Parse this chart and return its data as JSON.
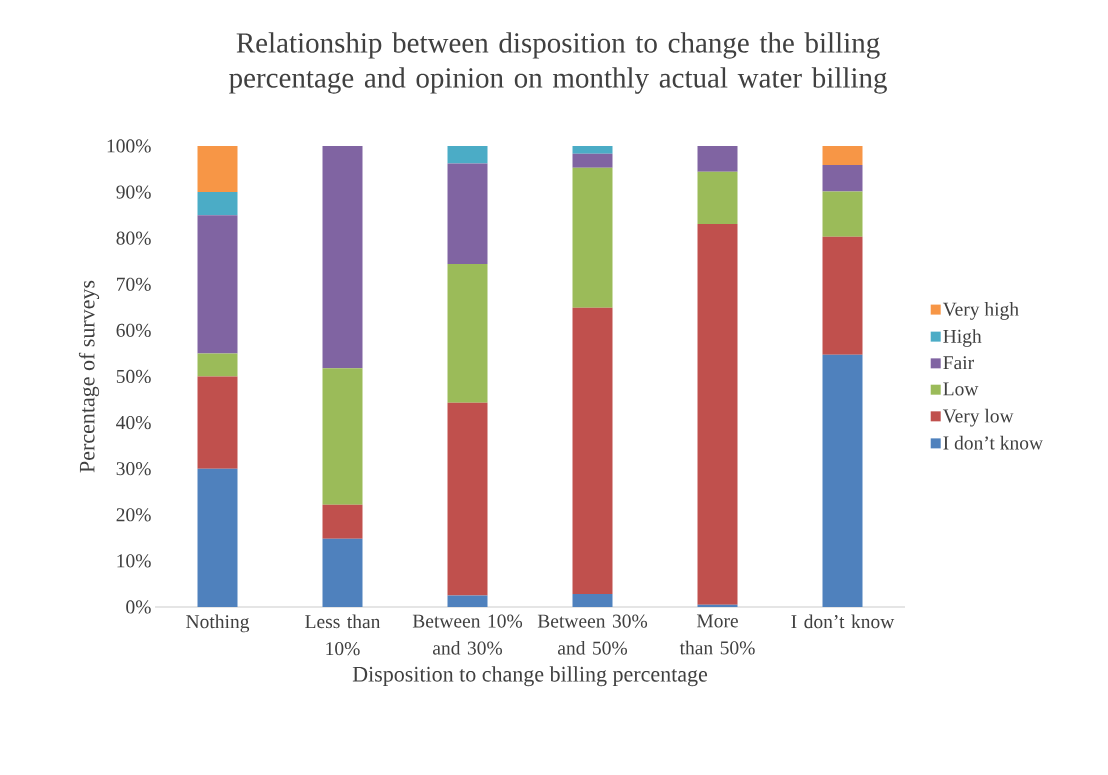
{
  "chart_data": {
    "type": "bar",
    "stacked": true,
    "title": "Relationship between disposition to change the billing percentage and opinion on monthly actual water billing",
    "xlabel": "Disposition to change billing percentage",
    "ylabel": "Percentage of surveys",
    "categories": [
      "Nothing",
      "Less than 10%",
      "Between 10% and 30%",
      "Between 30% and 50%",
      "More than 50%",
      "I don’t know"
    ],
    "series": [
      {
        "name": "I don’t know",
        "color": "#4f81bd",
        "values": [
          30,
          14.8,
          2.5,
          2.8,
          0.5,
          54.7
        ]
      },
      {
        "name": "Very low",
        "color": "#c0504d",
        "values": [
          20,
          7.4,
          41.8,
          62.1,
          82.6,
          25.6
        ]
      },
      {
        "name": "Low",
        "color": "#9bbb59",
        "values": [
          5,
          29.6,
          30.1,
          30.4,
          11.3,
          9.8
        ]
      },
      {
        "name": "Fair",
        "color": "#8064a2",
        "values": [
          30,
          48.2,
          21.8,
          3.0,
          5.6,
          5.8
        ]
      },
      {
        "name": "High",
        "color": "#4bacc6",
        "values": [
          5,
          0,
          3.8,
          1.7,
          0,
          0
        ]
      },
      {
        "name": "Very high",
        "color": "#f79646",
        "values": [
          10,
          0,
          0,
          0,
          0,
          4.1
        ]
      }
    ],
    "ylim": [
      0,
      100
    ],
    "yticks": [
      {
        "value": 0,
        "label": "0%"
      },
      {
        "value": 10,
        "label": "10%"
      },
      {
        "value": 20,
        "label": "20%"
      },
      {
        "value": 30,
        "label": "30%"
      },
      {
        "value": 40,
        "label": "40%"
      },
      {
        "value": 50,
        "label": "50%"
      },
      {
        "value": 60,
        "label": "60%"
      },
      {
        "value": 70,
        "label": "70%"
      },
      {
        "value": 80,
        "label": "80%"
      },
      {
        "value": 90,
        "label": "90%"
      },
      {
        "value": 100,
        "label": "100%"
      }
    ],
    "grid": false,
    "legend": "right"
  }
}
